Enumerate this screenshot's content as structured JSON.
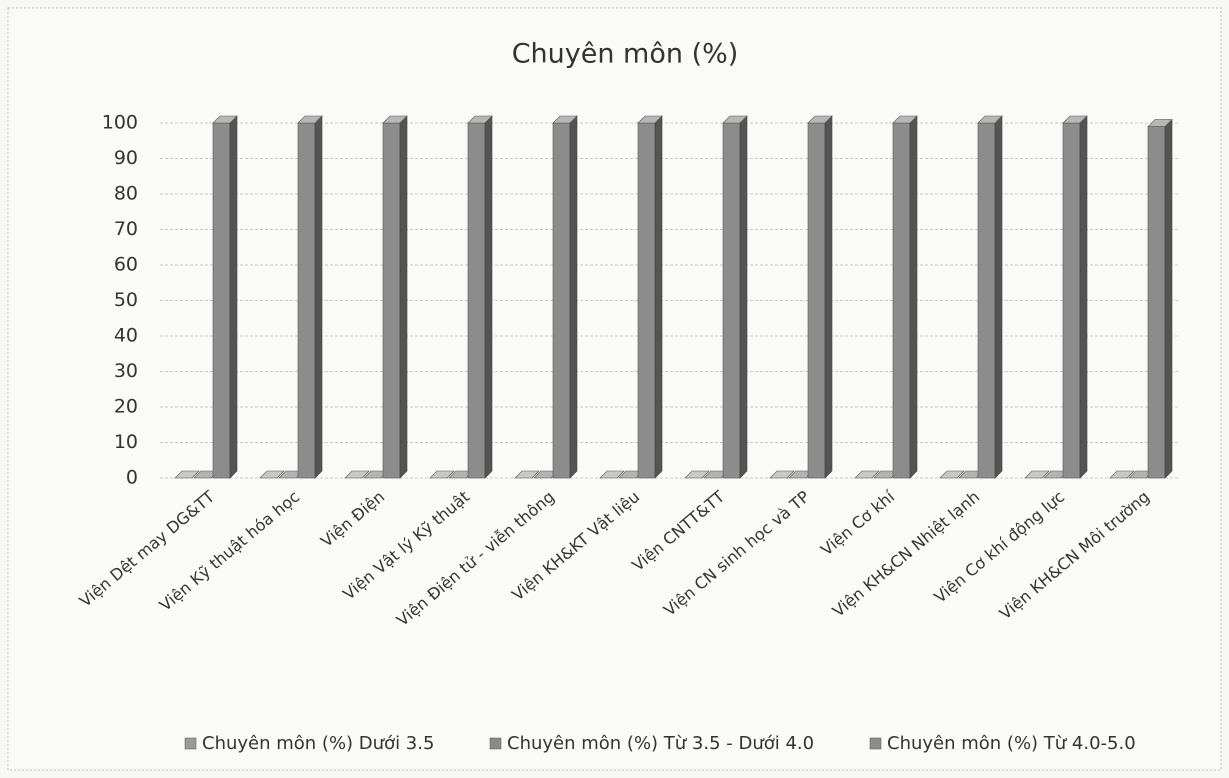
{
  "chart_data": {
    "type": "bar3d",
    "title": "Chuyên môn (%)",
    "categories": [
      "Viện Dệt may DG&TT",
      "Viện Kỹ thuật hóa học",
      "Viện Điện",
      "Viện Vật lý Kỹ thuật",
      "Viện Điện tử - viễn thông",
      "Viện KH&KT Vật liệu",
      "Viện CNTT&TT",
      "Viện CN sinh học và TP",
      "Viện Cơ khí",
      "Viện KH&CN Nhiệt lạnh",
      "Viện Cơ khí động lực",
      "Viện KH&CN Môi trường"
    ],
    "series": [
      {
        "name": "Chuyên môn (%) Dưới 3.5",
        "color": "#9a9a9a",
        "values": [
          0,
          0,
          0,
          0,
          0,
          0,
          0,
          0,
          0,
          0,
          0,
          0
        ]
      },
      {
        "name": "Chuyên môn (%) Từ 3.5 - Dưới 4.0",
        "color": "#8a8a8a",
        "values": [
          0,
          0,
          0,
          0,
          0,
          0,
          0,
          0,
          0,
          0,
          0,
          0
        ]
      },
      {
        "name": "Chuyên môn (%) Từ 4.0-5.0",
        "color": "#8c8c8c",
        "values": [
          100,
          100,
          100,
          100,
          100,
          100,
          100,
          100,
          100,
          100,
          100,
          99
        ]
      }
    ],
    "ylim": [
      0,
      100
    ],
    "yticks": [
      0,
      10,
      20,
      30,
      40,
      50,
      60,
      70,
      80,
      90,
      100
    ],
    "grid": true,
    "legend": "bottom"
  }
}
